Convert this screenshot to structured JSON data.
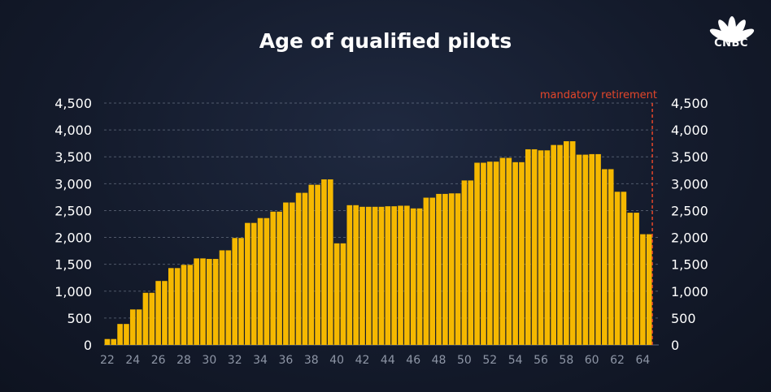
{
  "logo": {
    "text": "CNBC",
    "icon": "peacock-icon"
  },
  "chart_data": {
    "type": "bar",
    "title": "Age of qualified pilots",
    "xlabel": "",
    "ylabel": "",
    "ylim": [
      0,
      4500
    ],
    "yticks": [
      0,
      500,
      1000,
      1500,
      2000,
      2500,
      3000,
      3500,
      4000,
      4500
    ],
    "ytick_labels": [
      "0",
      "500",
      "1,000",
      "1,500",
      "2,000",
      "2,500",
      "3,000",
      "3,500",
      "4,000",
      "4,500"
    ],
    "xtick_labels": [
      "22",
      "24",
      "26",
      "28",
      "30",
      "32",
      "34",
      "36",
      "38",
      "40",
      "42",
      "44",
      "46",
      "48",
      "50",
      "52",
      "54",
      "56",
      "58",
      "60",
      "62",
      "64"
    ],
    "grid": "horizontal-dashed",
    "bar_color": "#f5b800",
    "annotation": {
      "text": "mandatory retirement",
      "x": 65,
      "color": "#e5462a"
    },
    "categories": [
      22,
      22.5,
      23,
      23.5,
      24,
      24.5,
      25,
      25.5,
      26,
      26.5,
      27,
      27.5,
      28,
      28.5,
      29,
      29.5,
      30,
      30.5,
      31,
      31.5,
      32,
      32.5,
      33,
      33.5,
      34,
      34.5,
      35,
      35.5,
      36,
      36.5,
      37,
      37.5,
      38,
      38.5,
      39,
      39.5,
      40,
      40.5,
      41,
      41.5,
      42,
      42.5,
      43,
      43.5,
      44,
      44.5,
      45,
      45.5,
      46,
      46.5,
      47,
      47.5,
      48,
      48.5,
      49,
      49.5,
      50,
      50.5,
      51,
      51.5,
      52,
      52.5,
      53,
      53.5,
      54,
      54.5,
      55,
      55.5,
      56,
      56.5,
      57,
      57.5,
      58,
      58.5,
      59,
      59.5,
      60,
      60.5,
      61,
      61.5,
      62,
      62.5,
      63,
      63.5,
      64,
      64.5
    ],
    "values": [
      110,
      110,
      390,
      390,
      660,
      660,
      970,
      970,
      1190,
      1190,
      1430,
      1430,
      1490,
      1490,
      1610,
      1610,
      1600,
      1600,
      1760,
      1760,
      1990,
      1990,
      2270,
      2270,
      2360,
      2360,
      2480,
      2480,
      2650,
      2650,
      2830,
      2830,
      2980,
      2980,
      3080,
      3080,
      1890,
      1890,
      2600,
      2600,
      2570,
      2570,
      2570,
      2570,
      2580,
      2580,
      2590,
      2590,
      2540,
      2540,
      2740,
      2740,
      2810,
      2810,
      2820,
      2820,
      3060,
      3060,
      3390,
      3390,
      3410,
      3410,
      3480,
      3480,
      3400,
      3400,
      3640,
      3640,
      3620,
      3620,
      3720,
      3720,
      3790,
      3790,
      3540,
      3540,
      3550,
      3550,
      3270,
      3270,
      2850,
      2850,
      2460,
      2460,
      2060,
      2060
    ]
  }
}
